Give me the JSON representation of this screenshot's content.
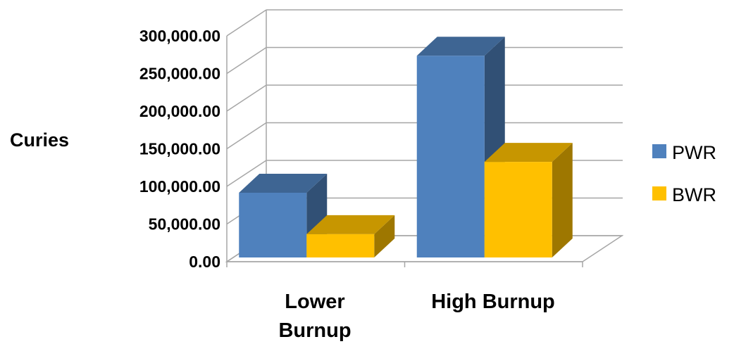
{
  "chart_data": {
    "type": "bar",
    "ylabel": "Curies",
    "categories": [
      "Lower Burnup",
      "High Burnup"
    ],
    "category_lines": [
      [
        "Lower",
        "Burnup"
      ],
      [
        "High Burnup"
      ]
    ],
    "series": [
      {
        "name": "PWR",
        "values": [
          86000,
          268000
        ],
        "color": "#4F81BD"
      },
      {
        "name": "BWR",
        "values": [
          31000,
          127000
        ],
        "color": "#FFC000"
      }
    ],
    "ylim": [
      0,
      300000
    ],
    "yticks": [
      "0.00",
      "50,000.00",
      "100,000.00",
      "150,000.00",
      "200,000.00",
      "250,000.00",
      "300,000.00"
    ],
    "grid": true,
    "legend_position": "right",
    "style": "3d-clustered-column"
  }
}
